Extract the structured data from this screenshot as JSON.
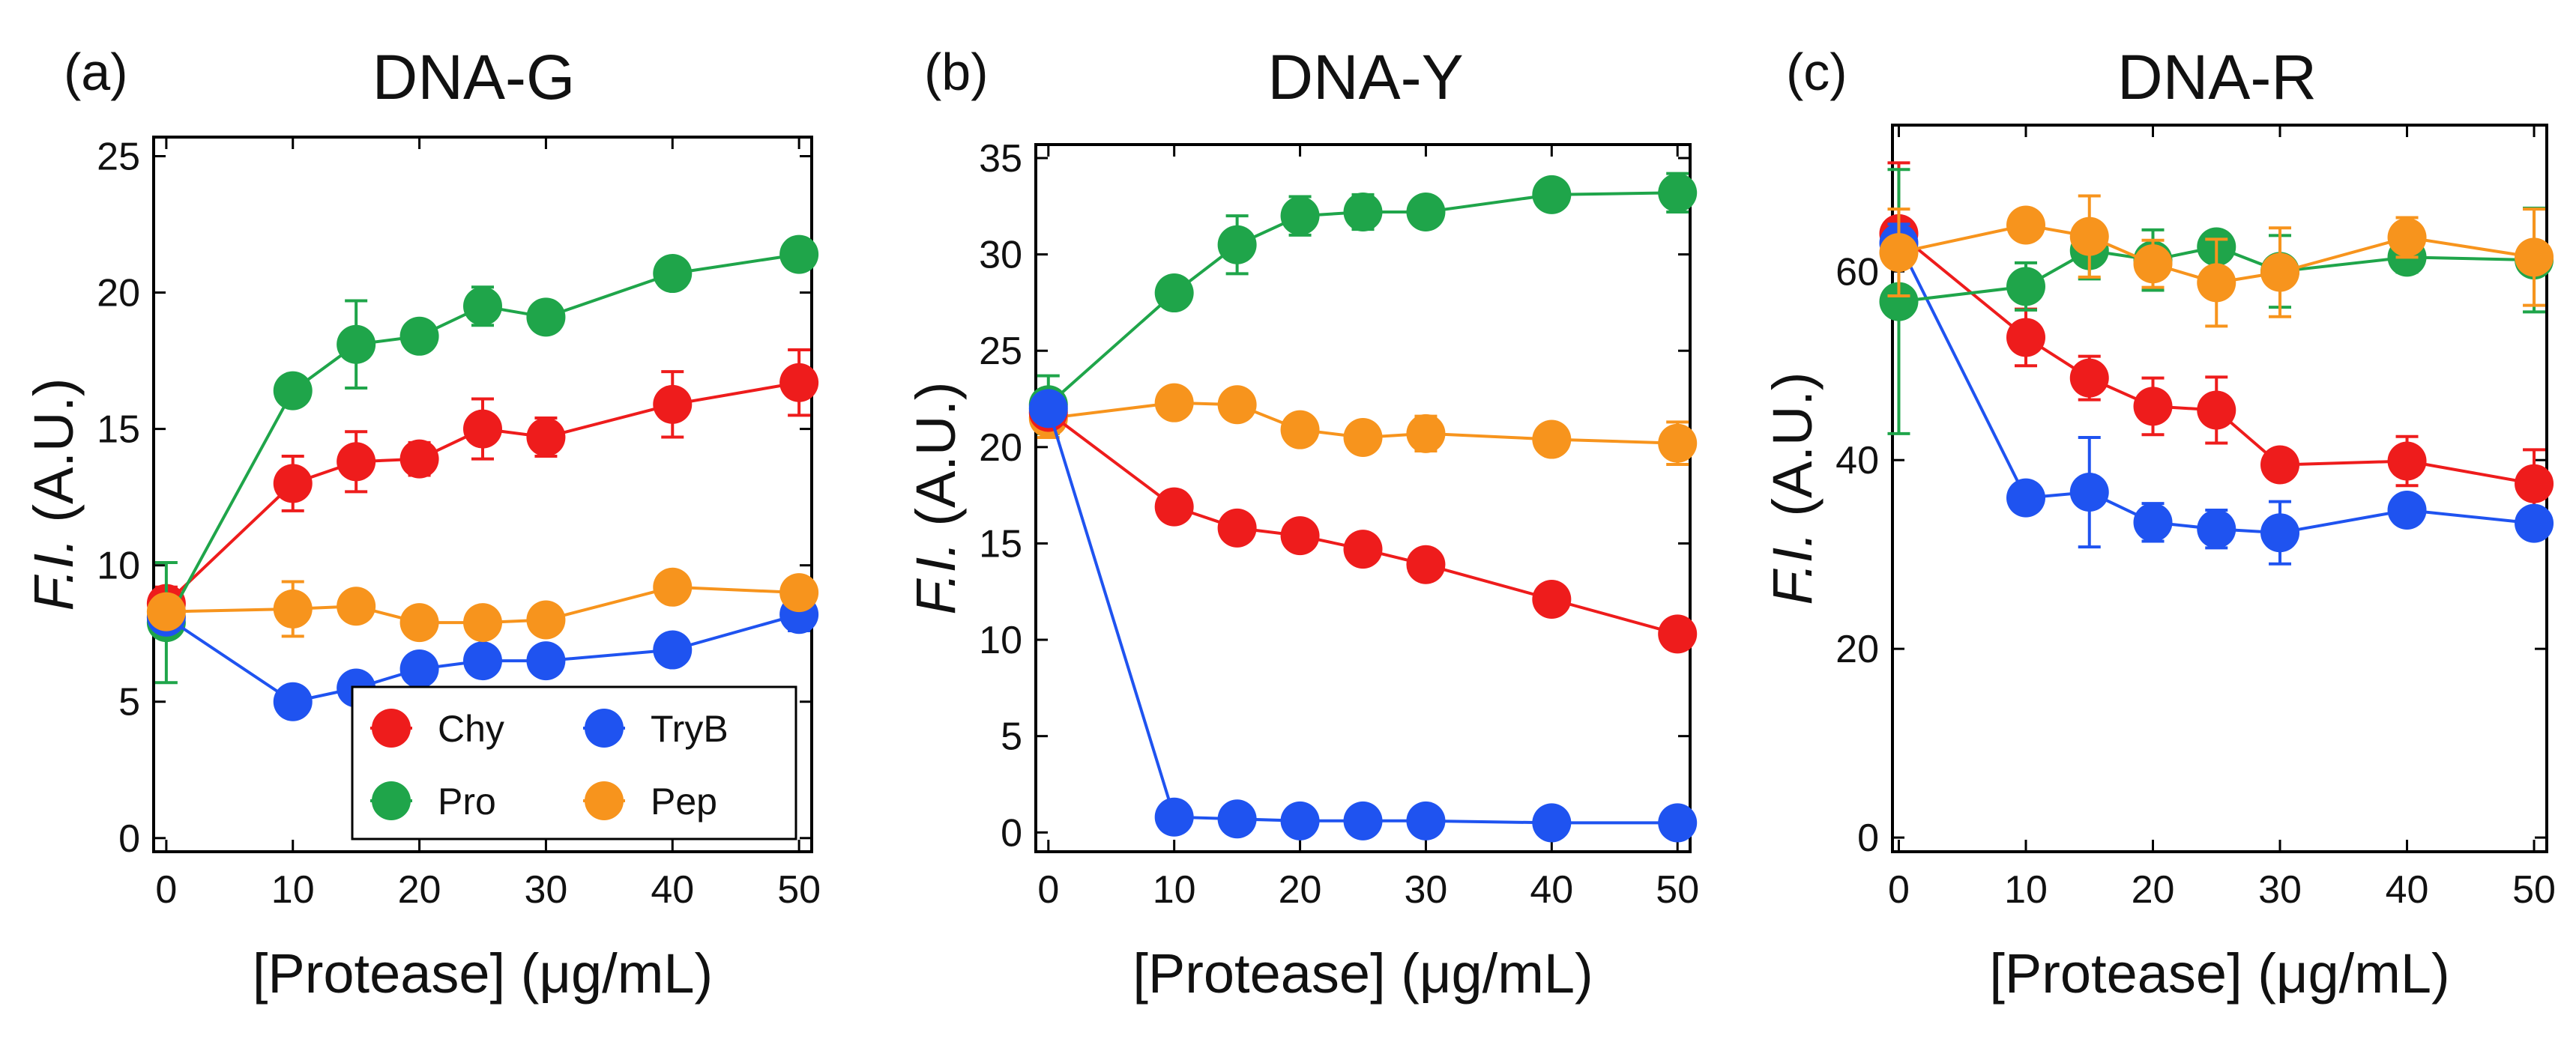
{
  "colors": {
    "Chy": "#ee1c1c",
    "Pro": "#1fa54a",
    "TryB": "#1f53f0",
    "Pep": "#f7941d"
  },
  "legend": [
    {
      "key": "Chy",
      "label": "Chy"
    },
    {
      "key": "TryB",
      "label": "TryB"
    },
    {
      "key": "Pro",
      "label": "Pro"
    },
    {
      "key": "Pep",
      "label": "Pep"
    }
  ],
  "chart_data": [
    {
      "type": "line",
      "panel_label": "(a)",
      "title": "DNA-G",
      "xlabel": "[Protease] (μg/mL)",
      "ylabel_italic": "F.I.",
      "ylabel_rest": " (A.U.)",
      "x": [
        0,
        10,
        15,
        20,
        25,
        30,
        40,
        50
      ],
      "xlim": [
        -1,
        51
      ],
      "ylim": [
        -0.5,
        25.7
      ],
      "xticks": [
        0,
        10,
        20,
        30,
        40,
        50
      ],
      "yticks": [
        0,
        5,
        10,
        15,
        20,
        25
      ],
      "legend_position": "bottom-right",
      "series": [
        {
          "name": "Chy",
          "values": [
            8.6,
            13.0,
            13.8,
            13.9,
            15.0,
            14.7,
            15.9,
            16.7
          ],
          "errors": [
            0.6,
            1.0,
            1.1,
            0.6,
            1.1,
            0.7,
            1.2,
            1.2
          ]
        },
        {
          "name": "Pro",
          "values": [
            7.9,
            16.4,
            18.1,
            18.4,
            19.5,
            19.1,
            20.7,
            21.4
          ],
          "errors": [
            2.2,
            0.5,
            1.6,
            0.5,
            0.7,
            0.4,
            0.5,
            0.3
          ]
        },
        {
          "name": "TryB",
          "values": [
            8.1,
            5.0,
            5.5,
            6.2,
            6.5,
            6.5,
            6.9,
            8.2
          ],
          "errors": [
            0.3,
            0.2,
            0.3,
            0.3,
            0.4,
            0.3,
            0.3,
            0.6
          ]
        },
        {
          "name": "Pep",
          "values": [
            8.3,
            8.4,
            8.5,
            7.9,
            7.9,
            8.0,
            9.2,
            9.0
          ],
          "errors": [
            0.4,
            1.0,
            0.5,
            0.3,
            0.3,
            0.3,
            0.4,
            0.3
          ]
        }
      ]
    },
    {
      "type": "line",
      "panel_label": "(b)",
      "title": "DNA-Y",
      "xlabel": "[Protease] (μg/mL)",
      "ylabel_italic": "F.I.",
      "ylabel_rest": " (A.U.)",
      "x": [
        0,
        10,
        15,
        20,
        25,
        30,
        40,
        50
      ],
      "xlim": [
        -1,
        51
      ],
      "ylim": [
        -1.0,
        35.7
      ],
      "xticks": [
        0,
        10,
        20,
        30,
        40,
        50
      ],
      "yticks": [
        0,
        5,
        10,
        15,
        20,
        25,
        30,
        35
      ],
      "series": [
        {
          "name": "Pro",
          "values": [
            22.2,
            28.0,
            30.5,
            32.0,
            32.2,
            32.2,
            33.1,
            33.2
          ],
          "errors": [
            1.5,
            0.4,
            1.5,
            1.0,
            0.9,
            0.4,
            0.3,
            1.0
          ]
        },
        {
          "name": "Pep",
          "values": [
            21.5,
            22.3,
            22.2,
            20.9,
            20.5,
            20.7,
            20.4,
            20.2
          ],
          "errors": [
            1.0,
            0.6,
            0.5,
            0.3,
            0.4,
            0.9,
            0.3,
            1.1
          ]
        },
        {
          "name": "Chy",
          "values": [
            21.8,
            16.9,
            15.8,
            15.4,
            14.7,
            13.9,
            12.1,
            10.3
          ],
          "errors": [
            0.5,
            0.4,
            0.4,
            0.3,
            0.3,
            0.3,
            0.3,
            0.3
          ]
        },
        {
          "name": "TryB",
          "values": [
            22.0,
            0.8,
            0.7,
            0.6,
            0.6,
            0.6,
            0.5,
            0.5
          ],
          "errors": [
            0.5,
            0.2,
            0.2,
            0.2,
            0.2,
            0.2,
            0.2,
            0.2
          ]
        }
      ]
    },
    {
      "type": "line",
      "panel_label": "(c)",
      "title": "DNA-R",
      "xlabel": "[Protease] (μg/mL)",
      "ylabel_italic": "F.I.",
      "ylabel_rest": " (A.U.)",
      "x": [
        0,
        10,
        15,
        20,
        25,
        30,
        40,
        50
      ],
      "xlim": [
        -0.5,
        51
      ],
      "ylim": [
        -1.5,
        75.5
      ],
      "xticks": [
        0,
        10,
        20,
        30,
        40,
        50
      ],
      "yticks": [
        0,
        20,
        40,
        60
      ],
      "series": [
        {
          "name": "Chy",
          "values": [
            64.0,
            53.0,
            48.7,
            45.7,
            45.3,
            39.5,
            39.9,
            37.5
          ],
          "errors": [
            7.5,
            3.0,
            2.3,
            3.0,
            3.5,
            1.0,
            2.6,
            3.6
          ]
        },
        {
          "name": "TryB",
          "values": [
            63.0,
            36.0,
            36.6,
            33.4,
            32.7,
            32.3,
            34.7,
            33.3
          ],
          "errors": [
            2.0,
            1.0,
            5.8,
            2.0,
            2.0,
            3.3,
            1.0,
            1.2
          ]
        },
        {
          "name": "Pro",
          "values": [
            56.8,
            58.4,
            62.2,
            61.2,
            62.6,
            60.0,
            61.5,
            61.2
          ],
          "errors": [
            14.0,
            2.5,
            3.0,
            3.2,
            1.3,
            3.8,
            1.6,
            5.5
          ]
        },
        {
          "name": "Pep",
          "values": [
            62.0,
            64.9,
            63.7,
            60.8,
            58.8,
            59.9,
            63.6,
            61.5
          ],
          "errors": [
            4.6,
            1.0,
            4.3,
            2.5,
            4.6,
            4.7,
            2.1,
            5.1
          ]
        }
      ]
    }
  ]
}
